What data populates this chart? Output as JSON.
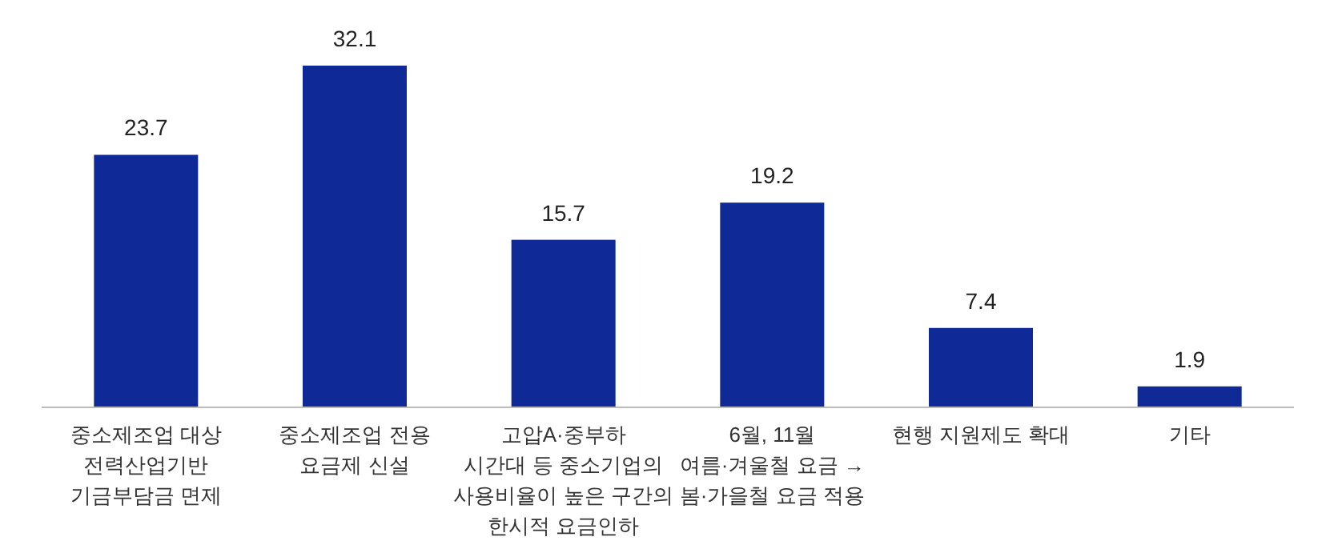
{
  "chart_data": {
    "type": "bar",
    "categories": [
      "중소제조업 대상\n전력산업기반\n기금부담금 면제",
      "중소제조업 전용\n요금제 신설",
      "고압A·중부하\n시간대 등 중소기업의\n사용비율이 높은 구간의\n한시적 요금인하",
      "6월, 11월\n여름·겨울철 요금 →\n봄·가을철 요금 적용",
      "현행 지원제도 확대",
      "기타"
    ],
    "values": [
      23.7,
      32.1,
      15.7,
      19.2,
      7.4,
      1.9
    ],
    "color": "#0f2a96",
    "data_labels": true
  }
}
